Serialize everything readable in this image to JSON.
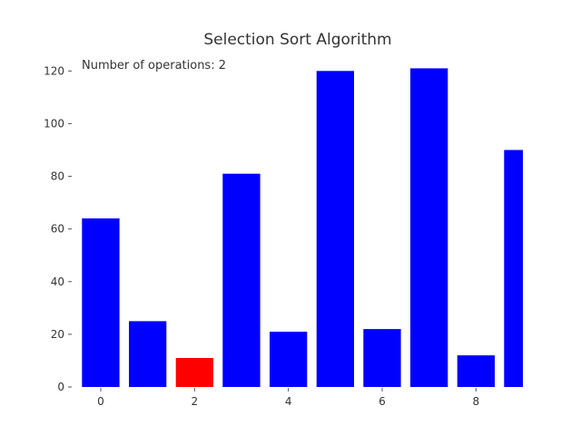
{
  "chart_data": {
    "type": "bar",
    "title": "Selection Sort Algorithm",
    "annotation": "Number of operations: 2",
    "x": [
      0,
      1,
      2,
      3,
      4,
      5,
      6,
      7,
      8,
      9
    ],
    "values": [
      64,
      25,
      11,
      81,
      21,
      120,
      22,
      121,
      12,
      90
    ],
    "highlight_index": 2,
    "bar_color": "#0000ff",
    "highlight_color": "#ff0000",
    "xlim": [
      -0.6,
      9.0
    ],
    "ylim": [
      0,
      127
    ],
    "xticks": [
      0,
      2,
      4,
      6,
      8
    ],
    "yticks": [
      0,
      20,
      40,
      60,
      80,
      100,
      120
    ],
    "grid": false,
    "xlabel": "",
    "ylabel": ""
  }
}
